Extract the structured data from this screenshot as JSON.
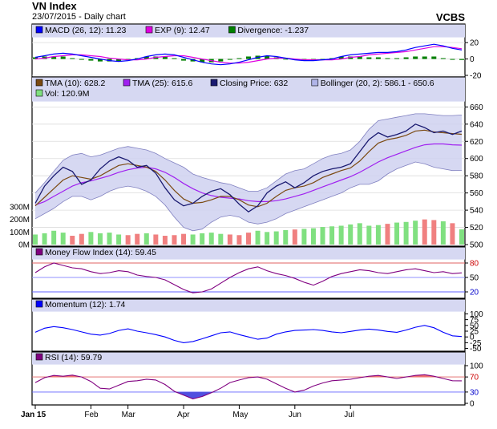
{
  "header": {
    "title": "VN Index",
    "subtitle": "23/07/2015 - Daily chart",
    "brand": "VCBS"
  },
  "colors": {
    "bg": "#ffffff",
    "band": "#d6d8f2",
    "bandFill": "#cfd1f0",
    "ohlc": "#191970"
  },
  "x_axis": {
    "labels": [
      "Jan 15",
      "Feb",
      "Mar",
      "Apr",
      "May",
      "Jun",
      "Jul"
    ]
  },
  "chart_data": [
    {
      "type": "line",
      "panel": "macd",
      "legend": [
        "MACD (26, 12): 11.23",
        "EXP (9): 12.47",
        "Divergence: -1.237"
      ],
      "ylim": [
        -20,
        25
      ],
      "ticks": [
        "20",
        "0",
        "-20"
      ],
      "series": [
        {
          "name": "MACD (26, 12)",
          "color": "#0000ff",
          "values": [
            2,
            4,
            6,
            7,
            6,
            4,
            2,
            0,
            -2,
            -3,
            -2,
            0,
            3,
            5,
            6,
            5,
            2,
            -1,
            -4,
            -6,
            -7,
            -6,
            -4,
            -1,
            2,
            4,
            3,
            1,
            -1,
            -2,
            -2,
            -1,
            0,
            3,
            5,
            6,
            7,
            8,
            8,
            9,
            11,
            14,
            16,
            18,
            16,
            13,
            11
          ]
        },
        {
          "name": "EXP (9)",
          "color": "#e000e0",
          "values": [
            0,
            1,
            3,
            4,
            5,
            5,
            4,
            3,
            1,
            0,
            -1,
            -1,
            0,
            2,
            3,
            4,
            4,
            2,
            0,
            -2,
            -4,
            -5,
            -5,
            -4,
            -2,
            0,
            1,
            1,
            0,
            -1,
            -1,
            -1,
            -1,
            0,
            2,
            3,
            5,
            6,
            7,
            8,
            9,
            11,
            13,
            15,
            15,
            14,
            12.5
          ]
        },
        {
          "name": "Divergence",
          "color": "#008000",
          "kind": "bar",
          "values": [
            2,
            3,
            3,
            3,
            1,
            -1,
            -2,
            -3,
            -3,
            -3,
            -1,
            1,
            3,
            3,
            3,
            1,
            -2,
            -3,
            -4,
            -4,
            -3,
            -1,
            1,
            3,
            4,
            4,
            2,
            0,
            -1,
            -1,
            -1,
            0,
            1,
            3,
            3,
            3,
            2,
            2,
            1,
            1,
            2,
            3,
            3,
            3,
            1,
            -1,
            -1.2
          ]
        }
      ]
    },
    {
      "type": "line",
      "panel": "price",
      "legend": [
        "TMA (10): 628.2",
        "TMA (25): 615.6",
        "Closing Price: 632",
        "Bollinger (20, 2): 586.1 - 650.6",
        "Vol: 120.9M"
      ],
      "ylim": [
        500,
        665
      ],
      "ticks": [
        "660",
        "640",
        "620",
        "600",
        "580",
        "560",
        "540",
        "520",
        "500"
      ],
      "vol_ticks": [
        "300M",
        "200M",
        "100M",
        "0M"
      ],
      "vol_max": 370,
      "series": [
        {
          "name": "Closing Price",
          "color": "#191970",
          "values": [
            548,
            568,
            580,
            590,
            585,
            570,
            575,
            588,
            597,
            602,
            598,
            590,
            592,
            583,
            566,
            552,
            545,
            548,
            556,
            562,
            565,
            558,
            547,
            538,
            545,
            560,
            568,
            573,
            566,
            572,
            580,
            585,
            588,
            590,
            594,
            608,
            622,
            630,
            625,
            628,
            632,
            640,
            636,
            630,
            632,
            628,
            632
          ]
        },
        {
          "name": "TMA (10)",
          "color": "#7b4a12",
          "values": [
            545,
            555,
            565,
            575,
            580,
            578,
            576,
            580,
            586,
            592,
            594,
            592,
            590,
            585,
            575,
            563,
            553,
            548,
            549,
            552,
            556,
            556,
            552,
            546,
            544,
            548,
            556,
            563,
            566,
            568,
            572,
            578,
            582,
            586,
            589,
            597,
            608,
            618,
            622,
            624,
            627,
            632,
            633,
            631,
            630,
            629,
            628.2
          ]
        },
        {
          "name": "TMA (25)",
          "color": "#a020f0",
          "values": [
            546,
            550,
            556,
            562,
            568,
            572,
            574,
            577,
            580,
            584,
            587,
            589,
            590,
            588,
            584,
            578,
            571,
            565,
            560,
            557,
            555,
            554,
            553,
            551,
            550,
            550,
            551,
            553,
            556,
            559,
            563,
            567,
            571,
            575,
            579,
            584,
            590,
            596,
            601,
            605,
            609,
            613,
            616,
            617,
            617,
            616,
            615.6
          ]
        },
        {
          "name": "Bollinger upper",
          "color": "#8080c0",
          "values": [
            560,
            572,
            585,
            598,
            604,
            606,
            602,
            604,
            608,
            612,
            614,
            612,
            610,
            606,
            600,
            595,
            590,
            582,
            578,
            575,
            572,
            570,
            566,
            562,
            562,
            566,
            574,
            582,
            586,
            588,
            594,
            600,
            604,
            606,
            610,
            620,
            634,
            644,
            646,
            648,
            650,
            652,
            652,
            651,
            650,
            650,
            650.6
          ]
        },
        {
          "name": "Bollinger lower",
          "color": "#8080c0",
          "values": [
            530,
            536,
            542,
            550,
            556,
            556,
            552,
            556,
            562,
            566,
            568,
            566,
            562,
            556,
            546,
            532,
            520,
            516,
            518,
            526,
            532,
            534,
            532,
            526,
            524,
            526,
            530,
            536,
            540,
            544,
            548,
            552,
            556,
            560,
            566,
            570,
            570,
            574,
            582,
            588,
            592,
            596,
            594,
            590,
            588,
            586,
            586.1
          ]
        },
        {
          "name": "Vol",
          "color": "#e08080",
          "kind": "bar",
          "values": [
            80,
            90,
            110,
            95,
            70,
            85,
            100,
            90,
            95,
            80,
            75,
            85,
            90,
            80,
            70,
            75,
            85,
            80,
            90,
            95,
            85,
            80,
            75,
            95,
            110,
            100,
            105,
            115,
            120,
            125,
            130,
            140,
            145,
            150,
            160,
            170,
            150,
            155,
            165,
            175,
            180,
            190,
            200,
            195,
            185,
            170,
            120.9
          ]
        }
      ]
    },
    {
      "type": "line",
      "panel": "mfi",
      "legend": [
        "Money Flow Index (14): 59.45"
      ],
      "ylim": [
        10,
        85
      ],
      "ticks": [
        "80",
        "50",
        "20"
      ],
      "series": [
        {
          "name": "Money Flow Index (14)",
          "color": "#800080",
          "values": [
            60,
            72,
            80,
            75,
            70,
            68,
            62,
            58,
            60,
            64,
            62,
            55,
            52,
            50,
            45,
            35,
            25,
            18,
            20,
            26,
            38,
            50,
            60,
            68,
            72,
            64,
            58,
            54,
            48,
            40,
            34,
            42,
            52,
            58,
            62,
            66,
            64,
            60,
            58,
            62,
            66,
            68,
            64,
            60,
            62,
            58,
            59.45
          ]
        }
      ]
    },
    {
      "type": "line",
      "panel": "momentum",
      "legend": [
        "Momentum (12): 1.74"
      ],
      "ylim": [
        -55,
        105
      ],
      "ticks": [
        "100",
        "75",
        "50",
        "25",
        "0",
        "-25",
        "-50"
      ],
      "series": [
        {
          "name": "Momentum (12)",
          "color": "#0000ff",
          "values": [
            20,
            38,
            45,
            40,
            32,
            22,
            12,
            8,
            15,
            28,
            35,
            25,
            18,
            10,
            0,
            -15,
            -25,
            -20,
            -8,
            5,
            18,
            22,
            10,
            0,
            -10,
            -5,
            12,
            22,
            28,
            30,
            32,
            28,
            22,
            18,
            24,
            30,
            34,
            30,
            24,
            20,
            30,
            42,
            50,
            40,
            20,
            5,
            1.74
          ]
        }
      ]
    },
    {
      "type": "line",
      "panel": "rsi",
      "legend": [
        "RSI (14): 59.79"
      ],
      "ylim": [
        0,
        100
      ],
      "ticks": [
        "100",
        "70",
        "30",
        "0"
      ],
      "series": [
        {
          "name": "RSI (14)",
          "color": "#800080",
          "values": [
            55,
            68,
            74,
            72,
            75,
            70,
            58,
            40,
            38,
            48,
            58,
            60,
            64,
            62,
            50,
            32,
            22,
            12,
            18,
            28,
            40,
            55,
            62,
            68,
            70,
            64,
            52,
            40,
            30,
            35,
            46,
            54,
            60,
            62,
            64,
            68,
            72,
            74,
            70,
            66,
            70,
            74,
            76,
            72,
            66,
            60,
            59.79
          ]
        }
      ]
    }
  ]
}
